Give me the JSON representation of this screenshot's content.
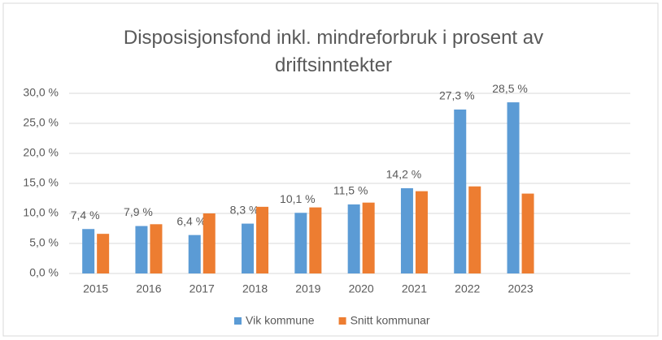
{
  "chart_data": {
    "type": "bar",
    "title": "Disposisjonsfond inkl. mindreforbruk i prosent av driftsinntekter",
    "categories": [
      "2015",
      "2016",
      "2017",
      "2018",
      "2019",
      "2020",
      "2021",
      "2022",
      "2023"
    ],
    "series": [
      {
        "name": "Vik kommune",
        "color": "#5b9bd5",
        "values": [
          7.4,
          7.9,
          6.4,
          8.3,
          10.1,
          11.5,
          14.2,
          27.3,
          28.5
        ],
        "value_labels": [
          "7,4 %",
          "7,9 %",
          "6,4 %",
          "8,3 %",
          "10,1 %",
          "11,5 %",
          "14,2 %",
          "27,3 %",
          "28,5 %"
        ]
      },
      {
        "name": "Snitt kommunar",
        "color": "#ed7d31",
        "values": [
          6.6,
          8.2,
          10.0,
          11.1,
          11.0,
          11.8,
          13.7,
          14.5,
          13.3
        ]
      }
    ],
    "ylim": [
      0,
      30
    ],
    "yticks": [
      {
        "value": 0,
        "label": "0,0 %"
      },
      {
        "value": 5,
        "label": "5,0 %"
      },
      {
        "value": 10,
        "label": "10,0 %"
      },
      {
        "value": 15,
        "label": "15,0 %"
      },
      {
        "value": 20,
        "label": "20,0 %"
      },
      {
        "value": 25,
        "label": "25,0 %"
      },
      {
        "value": 30,
        "label": "30,0 %"
      }
    ],
    "grid": true,
    "legend": "bottom"
  }
}
